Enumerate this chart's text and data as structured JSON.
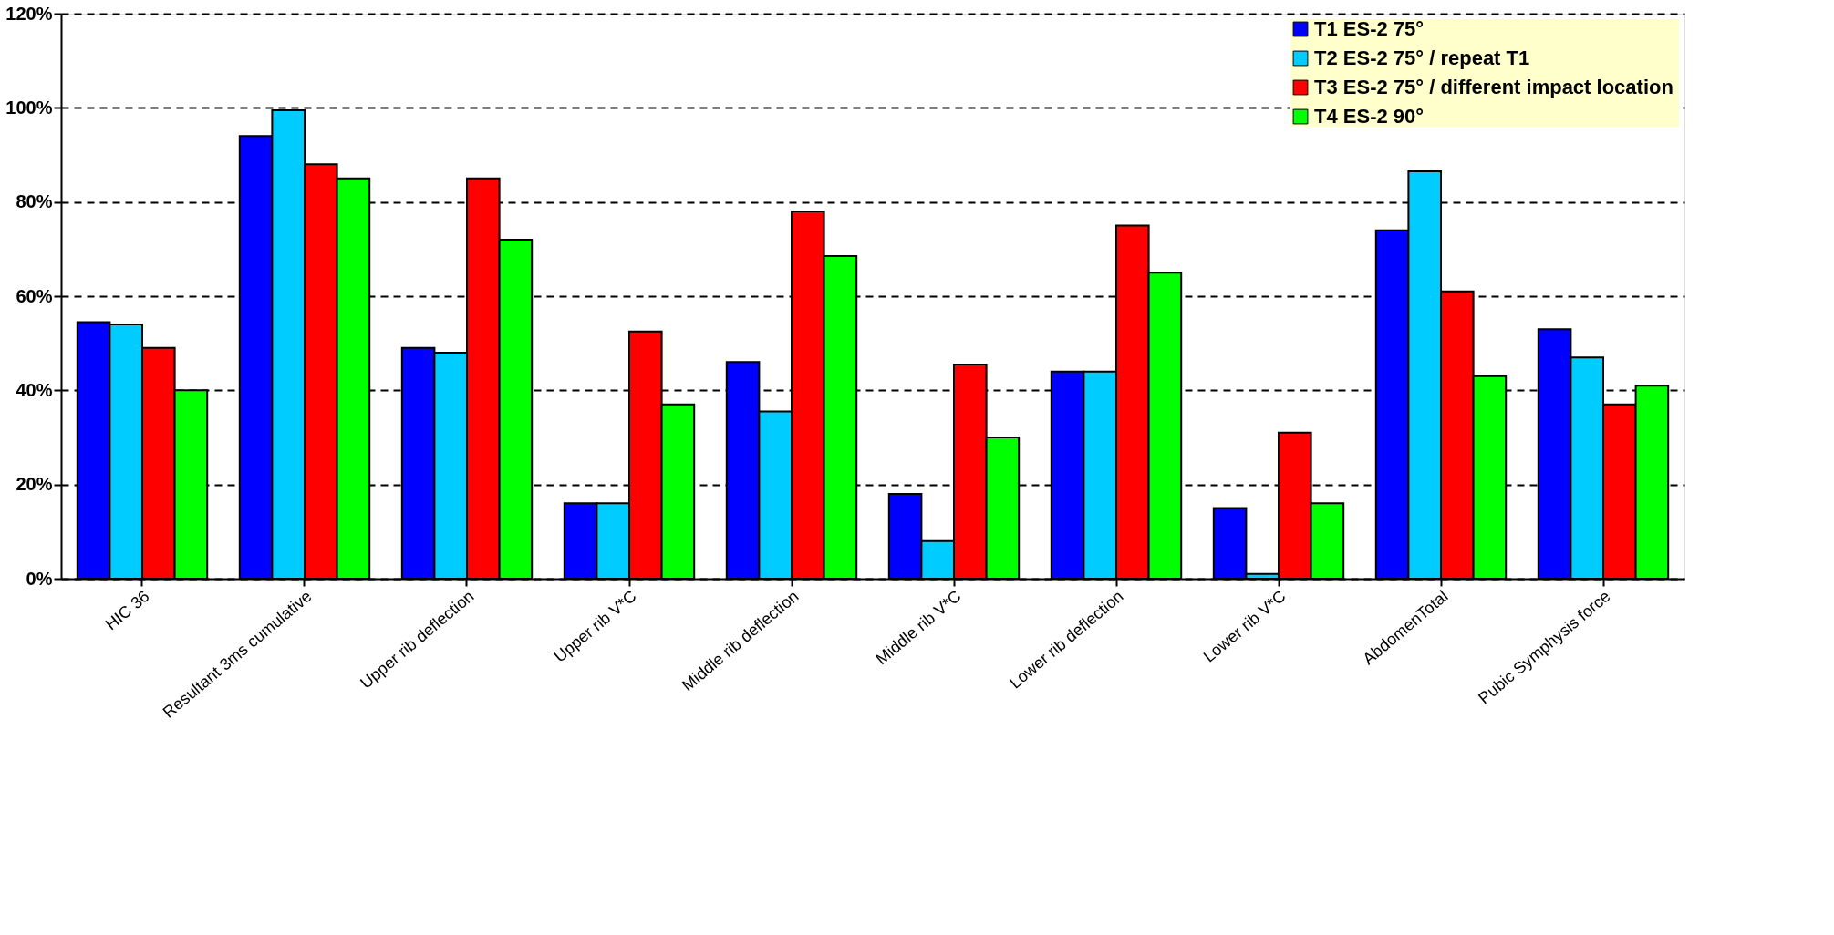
{
  "chart_data": {
    "type": "bar",
    "categories": [
      "HIC 36",
      "Resultant 3ms cumulative",
      "Upper rib deflection",
      "Upper rib V*C",
      "Middle rib deflection",
      "Middle rib V*C",
      "Lower rib deflection",
      "Lower rib V*C",
      "AbdomenTotal",
      "Pubic Symphysis force"
    ],
    "series": [
      {
        "name": "T1 ES-2 75°",
        "color": "#0000ff",
        "values": [
          54.5,
          94,
          49,
          16,
          46,
          18,
          44,
          15,
          74,
          53
        ]
      },
      {
        "name": "T2 ES-2 75° / repeat T1",
        "color": "#00ccff",
        "values": [
          54,
          99.5,
          48,
          16,
          35.5,
          8,
          44,
          1,
          86.5,
          47
        ]
      },
      {
        "name": "T3 ES-2 75° / different  impact location",
        "color": "#ff0000",
        "values": [
          49,
          88,
          85,
          52.5,
          78,
          45.5,
          75,
          31,
          61,
          37
        ]
      },
      {
        "name": "T4 ES-2  90°",
        "color": "#00ff00",
        "values": [
          40,
          85,
          72,
          37,
          68.5,
          30,
          65,
          16,
          43,
          41
        ]
      }
    ],
    "ylim": [
      0,
      120
    ],
    "yticks": [
      {
        "value": 0,
        "label": "0%"
      },
      {
        "value": 20,
        "label": "20%"
      },
      {
        "value": 40,
        "label": "40%"
      },
      {
        "value": 60,
        "label": "60%"
      },
      {
        "value": 80,
        "label": "80%"
      },
      {
        "value": 100,
        "label": "100%"
      },
      {
        "value": 120,
        "label": "120%"
      }
    ],
    "grid": "y",
    "legend": "top right"
  }
}
